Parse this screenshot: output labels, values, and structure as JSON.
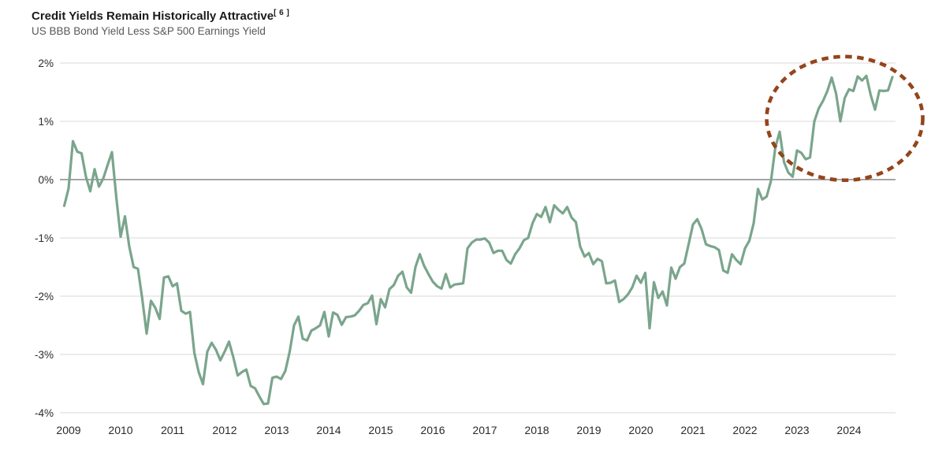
{
  "header": {
    "title": "Credit Yields Remain Historically Attractive",
    "footnote_marker": "[ 6 ]",
    "subtitle": "US BBB Bond Yield Less S&P 500 Earnings Yield"
  },
  "style": {
    "title_color": "#1a1a1a",
    "subtitle_color": "#585858",
    "axis_text_color": "#2a2a2a",
    "grid_color": "#d9d9d9",
    "zero_line_color": "#6f6f6f",
    "line_color": "#7aa58c",
    "highlight_color": "#94451c",
    "background": "#ffffff"
  },
  "chart_data": {
    "type": "line",
    "title": "Credit Yields Remain Historically Attractive",
    "subtitle": "US BBB Bond Yield Less S&P 500 Earnings Yield",
    "unit": "%",
    "ylim": [
      -4,
      2
    ],
    "grid": "horizontal",
    "legend": "none",
    "y_tick_labels": [
      "2%",
      "1%",
      "0%",
      "-1%",
      "-2%",
      "-3%",
      "-4%"
    ],
    "y_tick_values": [
      2,
      1,
      0,
      -1,
      -2,
      -3,
      -4
    ],
    "x_tick_labels": [
      "2009",
      "2010",
      "2011",
      "2012",
      "2013",
      "2014",
      "2015",
      "2016",
      "2017",
      "2018",
      "2019",
      "2020",
      "2021",
      "2022",
      "2023",
      "2024"
    ],
    "x_start": "2008-12",
    "x_step": "monthly",
    "x_start_offset_months": -1,
    "series": [
      {
        "name": "US BBB Bond Yield Less S&P 500 Earnings Yield (%)",
        "values": [
          -0.45,
          -0.15,
          0.66,
          0.48,
          0.45,
          0.05,
          -0.2,
          0.18,
          -0.12,
          0.02,
          0.25,
          0.47,
          -0.3,
          -0.98,
          -0.63,
          -1.15,
          -1.5,
          -1.53,
          -2.05,
          -2.64,
          -2.08,
          -2.2,
          -2.39,
          -1.68,
          -1.66,
          -1.83,
          -1.78,
          -2.25,
          -2.3,
          -2.27,
          -2.97,
          -3.3,
          -3.51,
          -2.95,
          -2.8,
          -2.92,
          -3.1,
          -2.95,
          -2.78,
          -3.05,
          -3.36,
          -3.3,
          -3.26,
          -3.54,
          -3.58,
          -3.72,
          -3.85,
          -3.84,
          -3.4,
          -3.38,
          -3.42,
          -3.28,
          -2.95,
          -2.5,
          -2.35,
          -2.73,
          -2.76,
          -2.59,
          -2.55,
          -2.5,
          -2.27,
          -2.69,
          -2.28,
          -2.32,
          -2.49,
          -2.36,
          -2.35,
          -2.33,
          -2.25,
          -2.15,
          -2.12,
          -1.99,
          -2.48,
          -2.05,
          -2.19,
          -1.88,
          -1.81,
          -1.65,
          -1.58,
          -1.85,
          -1.94,
          -1.5,
          -1.28,
          -1.48,
          -1.62,
          -1.75,
          -1.83,
          -1.87,
          -1.62,
          -1.85,
          -1.8,
          -1.79,
          -1.78,
          -1.18,
          -1.08,
          -1.03,
          -1.03,
          -1.01,
          -1.08,
          -1.26,
          -1.22,
          -1.22,
          -1.38,
          -1.44,
          -1.28,
          -1.18,
          -1.04,
          -1.0,
          -0.75,
          -0.59,
          -0.64,
          -0.47,
          -0.73,
          -0.44,
          -0.52,
          -0.58,
          -0.47,
          -0.65,
          -0.73,
          -1.15,
          -1.32,
          -1.26,
          -1.45,
          -1.36,
          -1.4,
          -1.78,
          -1.77,
          -1.73,
          -2.1,
          -2.05,
          -1.97,
          -1.85,
          -1.65,
          -1.77,
          -1.6,
          -2.55,
          -1.76,
          -2.03,
          -1.92,
          -2.16,
          -1.51,
          -1.7,
          -1.5,
          -1.44,
          -1.11,
          -0.77,
          -0.68,
          -0.85,
          -1.11,
          -1.14,
          -1.16,
          -1.21,
          -1.56,
          -1.6,
          -1.28,
          -1.38,
          -1.45,
          -1.18,
          -1.05,
          -0.75,
          -0.16,
          -0.34,
          -0.29,
          -0.02,
          0.55,
          0.82,
          0.3,
          0.12,
          0.05,
          0.5,
          0.46,
          0.35,
          0.38,
          1.0,
          1.22,
          1.35,
          1.52,
          1.75,
          1.48,
          1.0,
          1.4,
          1.55,
          1.52,
          1.77,
          1.7,
          1.78,
          1.45,
          1.2,
          1.53,
          1.52,
          1.53,
          1.76
        ]
      }
    ],
    "annotation": {
      "type": "dashed-ellipse",
      "purpose": "highlights 2022-2024 period of positive yield gap",
      "center_month_index": 180,
      "center_value": 1.05,
      "radius_months": 18,
      "radius_value": 1.06
    }
  }
}
